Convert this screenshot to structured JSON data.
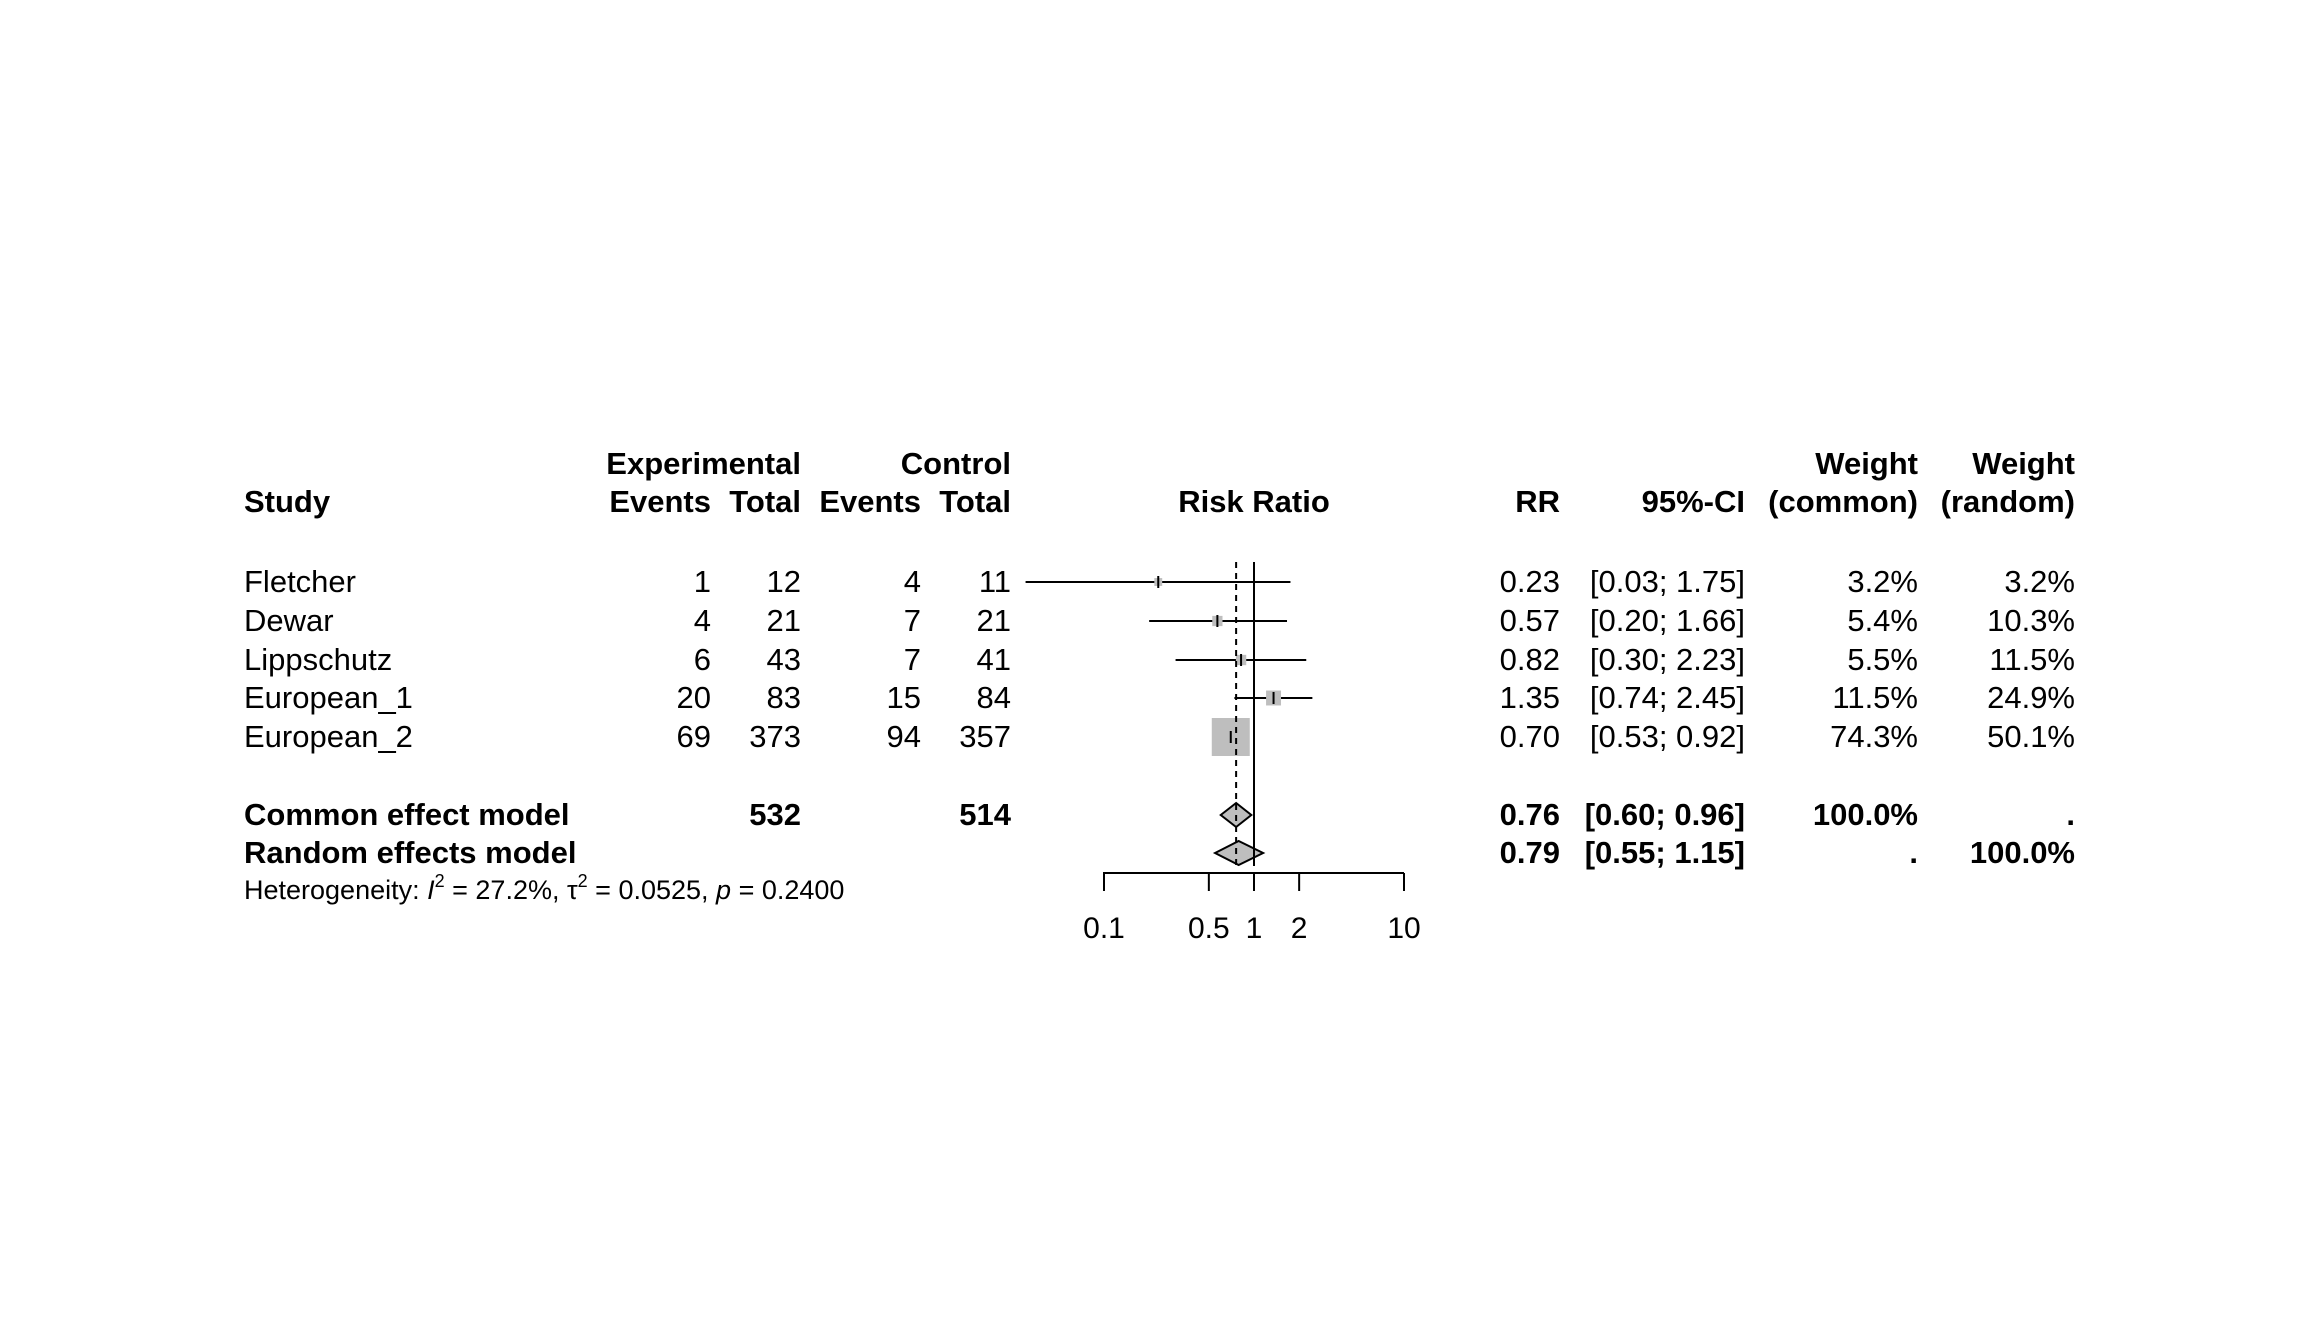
{
  "chart_data": {
    "type": "forest",
    "headers": {
      "study": "Study",
      "experimental": "Experimental",
      "control": "Control",
      "exp_events": "Events",
      "exp_total": "Total",
      "ctrl_events": "Events",
      "ctrl_total": "Total",
      "plot": "Risk Ratio",
      "rr": "RR",
      "ci": "95%-CI",
      "weight1": "Weight",
      "weight1_sub": "(common)",
      "weight2": "Weight",
      "weight2_sub": "(random)"
    },
    "studies": [
      {
        "name": "Fletcher",
        "exp_events": "1",
        "exp_total": "12",
        "ctrl_events": "4",
        "ctrl_total": "11",
        "rr": 0.23,
        "lower": 0.03,
        "upper": 1.75,
        "rr_text": "0.23",
        "ci_text": "[0.03; 1.75]",
        "w_common": "3.2%",
        "w_random": "3.2%",
        "weight": 3.2
      },
      {
        "name": "Dewar",
        "exp_events": "4",
        "exp_total": "21",
        "ctrl_events": "7",
        "ctrl_total": "21",
        "rr": 0.57,
        "lower": 0.2,
        "upper": 1.66,
        "rr_text": "0.57",
        "ci_text": "[0.20; 1.66]",
        "w_common": "5.4%",
        "w_random": "10.3%",
        "weight": 5.4
      },
      {
        "name": "Lippschutz",
        "exp_events": "6",
        "exp_total": "43",
        "ctrl_events": "7",
        "ctrl_total": "41",
        "rr": 0.82,
        "lower": 0.3,
        "upper": 2.23,
        "rr_text": "0.82",
        "ci_text": "[0.30; 2.23]",
        "w_common": "5.5%",
        "w_random": "11.5%",
        "weight": 5.5
      },
      {
        "name": "European_1",
        "exp_events": "20",
        "exp_total": "83",
        "ctrl_events": "15",
        "ctrl_total": "84",
        "rr": 1.35,
        "lower": 0.74,
        "upper": 2.45,
        "rr_text": "1.35",
        "ci_text": "[0.74; 2.45]",
        "w_common": "11.5%",
        "w_random": "24.9%",
        "weight": 11.5
      },
      {
        "name": "European_2",
        "exp_events": "69",
        "exp_total": "373",
        "ctrl_events": "94",
        "ctrl_total": "357",
        "rr": 0.7,
        "lower": 0.53,
        "upper": 0.92,
        "rr_text": "0.70",
        "ci_text": "[0.53; 0.92]",
        "w_common": "74.3%",
        "w_random": "50.1%",
        "weight": 74.3
      }
    ],
    "pooled": [
      {
        "name": "Common effect model",
        "exp_total": "532",
        "ctrl_total": "514",
        "rr": 0.76,
        "lower": 0.6,
        "upper": 0.96,
        "rr_text": "0.76",
        "ci_text": "[0.60; 0.96]",
        "w_common": "100.0%",
        "w_random": "."
      },
      {
        "name": "Random effects model",
        "exp_total": "",
        "ctrl_total": "",
        "rr": 0.79,
        "lower": 0.55,
        "upper": 1.15,
        "rr_text": "0.79",
        "ci_text": "[0.55; 1.15]",
        "w_common": ".",
        "w_random": "100.0%"
      }
    ],
    "heterogeneity": {
      "prefix": "Heterogeneity: ",
      "i2_symbol": "I",
      "i2_value": " = 27.2%, ",
      "tau2_symbol": "τ",
      "tau2_value": " = 0.0525, ",
      "p_symbol": "p",
      "p_value": " = 0.2400",
      "superscript": "2"
    },
    "x_axis": {
      "scale": "log",
      "ticks": [
        0.1,
        0.5,
        1,
        2,
        10
      ],
      "tick_labels": [
        "0.1",
        "0.5",
        "1",
        "2",
        "10"
      ],
      "range": [
        0.1,
        10
      ]
    },
    "null_value": 1,
    "colors": {
      "square": "#bebebe",
      "diamond": "#bebebe",
      "line": "#000000"
    }
  }
}
